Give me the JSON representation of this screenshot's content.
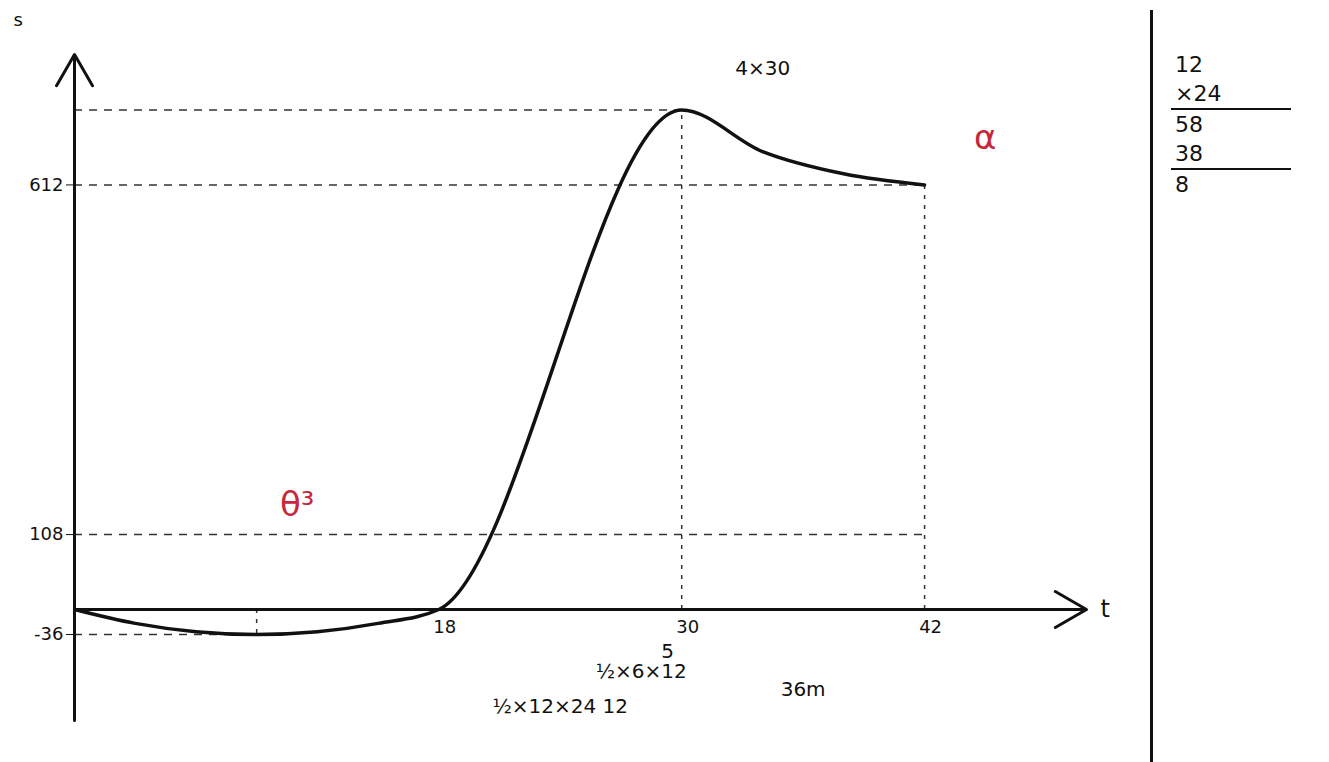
{
  "chart_data": {
    "type": "line",
    "x_label": "t",
    "y_label": "s",
    "x": [
      0,
      3,
      6,
      9,
      12,
      15,
      18,
      30,
      34,
      38,
      42
    ],
    "values": [
      0,
      -20,
      -32,
      -36,
      -32,
      -20,
      0,
      720,
      660,
      628,
      612
    ],
    "color": "#111111",
    "xlim": [
      0,
      50
    ],
    "ylim": [
      -160,
      800
    ],
    "xticks": [
      18,
      30,
      42
    ],
    "yticks": [
      -36,
      108,
      612
    ],
    "grid": false,
    "annotations": [
      {
        "text": "θ³",
        "x": 11,
        "y": 150,
        "color": "#c8283c"
      },
      {
        "text": "α",
        "x": 45,
        "y": 680,
        "color": "#c8283c"
      },
      {
        "text": "4×30",
        "x": 34,
        "y": 780,
        "color": "#111111"
      },
      {
        "text": "5",
        "x": 29.3,
        "y": -60,
        "color": "#111111"
      },
      {
        "text": "½×6×12",
        "x": 28,
        "y": -90,
        "color": "#111111"
      },
      {
        "text": "36m",
        "x": 36,
        "y": -115,
        "color": "#111111"
      },
      {
        "text": "½×12×24 12",
        "x": 24,
        "y": -140,
        "color": "#111111"
      }
    ],
    "side_notes": [
      "12",
      "×24",
      "58",
      "38",
      "8"
    ]
  }
}
